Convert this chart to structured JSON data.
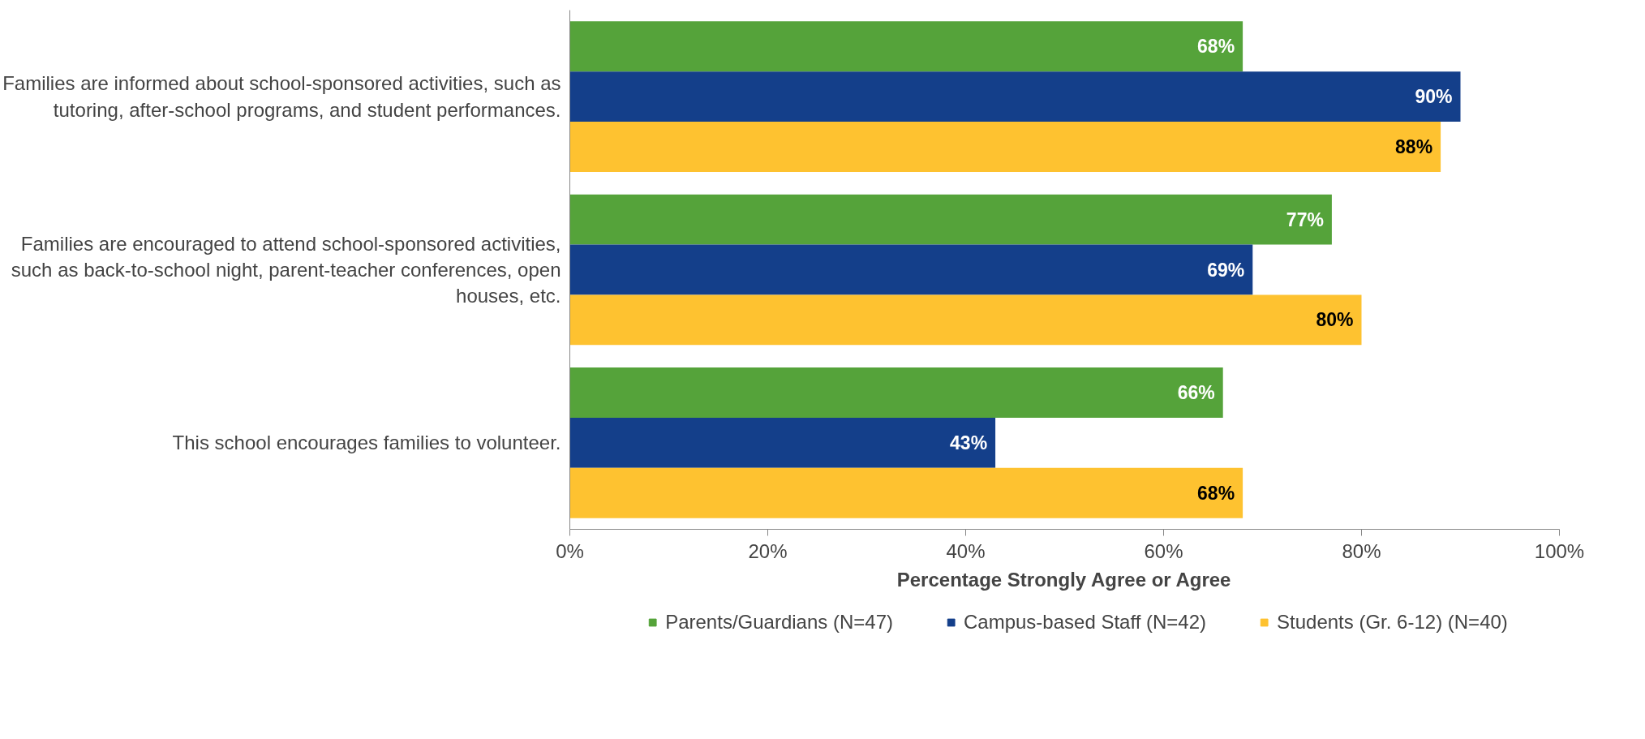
{
  "chart_data": {
    "type": "bar",
    "orientation": "horizontal",
    "xlabel": "Percentage Strongly Agree or Agree",
    "categories": [
      "Families are informed about school-sponsored activities, such as tutoring, after-school programs, and student performances.",
      "Families are encouraged to attend school-sponsored activities, such as back-to-school night, parent-teacher conferences, open houses, etc.",
      "This school encourages families to volunteer."
    ],
    "series": [
      {
        "name": "Parents/Guardians (N=47)",
        "color": "#55a33a",
        "values": [
          68,
          77,
          66
        ],
        "value_labels": [
          "68%",
          "77%",
          "66%"
        ]
      },
      {
        "name": "Campus-based Staff (N=42)",
        "color": "#143f8a",
        "values": [
          90,
          69,
          43
        ],
        "value_labels": [
          "90%",
          "69%",
          "43%"
        ]
      },
      {
        "name": "Students (Gr. 6-12) (N=40)",
        "color": "#fec230",
        "values": [
          88,
          80,
          68
        ],
        "value_labels": [
          "88%",
          "80%",
          "68%"
        ]
      }
    ],
    "xlim": [
      0,
      100
    ],
    "xticks": [
      {
        "value": 0,
        "label": "0%"
      },
      {
        "value": 20,
        "label": "20%"
      },
      {
        "value": 40,
        "label": "40%"
      },
      {
        "value": 60,
        "label": "60%"
      },
      {
        "value": 80,
        "label": "80%"
      },
      {
        "value": 100,
        "label": "100%"
      }
    ],
    "legend": "bottom",
    "grid": false
  }
}
